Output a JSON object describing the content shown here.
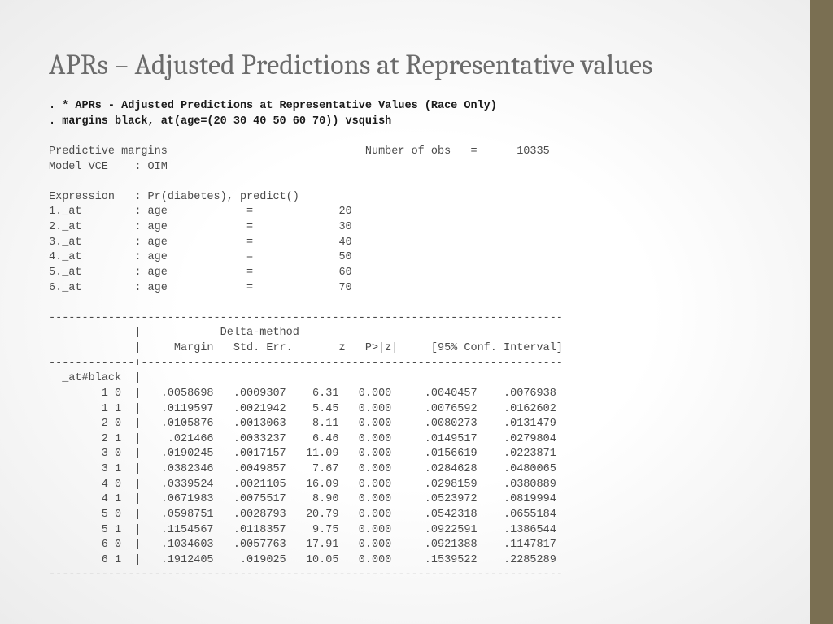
{
  "title": "APRs – Adjusted Predictions at Representative values",
  "accent_color": "#7a6f52",
  "cmd1": ". * APRs - Adjusted Predictions at Representative Values (Race Only)",
  "cmd2": ". margins black, at(age=(20 30 40 50 60 70)) vsquish",
  "header": {
    "left": "Predictive margins",
    "obs_label": "Number of obs",
    "obs_value": "10335",
    "model_vce": "Model VCE    : OIM",
    "expression": "Expression   : Pr(diabetes), predict()"
  },
  "at_list": [
    {
      "n": "1",
      "var": "age",
      "val": "20"
    },
    {
      "n": "2",
      "var": "age",
      "val": "30"
    },
    {
      "n": "3",
      "var": "age",
      "val": "40"
    },
    {
      "n": "4",
      "var": "age",
      "val": "50"
    },
    {
      "n": "5",
      "var": "age",
      "val": "60"
    },
    {
      "n": "6",
      "var": "age",
      "val": "70"
    }
  ],
  "table": {
    "hline": "------------------------------------------------------------------------------",
    "crosshline": "-------------+----------------------------------------------------------------",
    "col_group": "_at#black",
    "cols": [
      "Margin",
      "Std. Err.",
      "z",
      "P>|z|",
      "[95% Conf. Interval]"
    ],
    "delta_label": "Delta-method",
    "rows": [
      {
        "key": "1 0",
        "margin": ".0058698",
        "se": ".0009307",
        "z": "6.31",
        "p": "0.000",
        "lo": ".0040457",
        "hi": ".0076938"
      },
      {
        "key": "1 1",
        "margin": ".0119597",
        "se": ".0021942",
        "z": "5.45",
        "p": "0.000",
        "lo": ".0076592",
        "hi": ".0162602"
      },
      {
        "key": "2 0",
        "margin": ".0105876",
        "se": ".0013063",
        "z": "8.11",
        "p": "0.000",
        "lo": ".0080273",
        "hi": ".0131479"
      },
      {
        "key": "2 1",
        "margin": ".021466",
        "se": ".0033237",
        "z": "6.46",
        "p": "0.000",
        "lo": ".0149517",
        "hi": ".0279804"
      },
      {
        "key": "3 0",
        "margin": ".0190245",
        "se": ".0017157",
        "z": "11.09",
        "p": "0.000",
        "lo": ".0156619",
        "hi": ".0223871"
      },
      {
        "key": "3 1",
        "margin": ".0382346",
        "se": ".0049857",
        "z": "7.67",
        "p": "0.000",
        "lo": ".0284628",
        "hi": ".0480065"
      },
      {
        "key": "4 0",
        "margin": ".0339524",
        "se": ".0021105",
        "z": "16.09",
        "p": "0.000",
        "lo": ".0298159",
        "hi": ".0380889"
      },
      {
        "key": "4 1",
        "margin": ".0671983",
        "se": ".0075517",
        "z": "8.90",
        "p": "0.000",
        "lo": ".0523972",
        "hi": ".0819994"
      },
      {
        "key": "5 0",
        "margin": ".0598751",
        "se": ".0028793",
        "z": "20.79",
        "p": "0.000",
        "lo": ".0542318",
        "hi": ".0655184"
      },
      {
        "key": "5 1",
        "margin": ".1154567",
        "se": ".0118357",
        "z": "9.75",
        "p": "0.000",
        "lo": ".0922591",
        "hi": ".1386544"
      },
      {
        "key": "6 0",
        "margin": ".1034603",
        "se": ".0057763",
        "z": "17.91",
        "p": "0.000",
        "lo": ".0921388",
        "hi": ".1147817"
      },
      {
        "key": "6 1",
        "margin": ".1912405",
        "se": ".019025",
        "z": "10.05",
        "p": "0.000",
        "lo": ".1539522",
        "hi": ".2285289"
      }
    ]
  }
}
